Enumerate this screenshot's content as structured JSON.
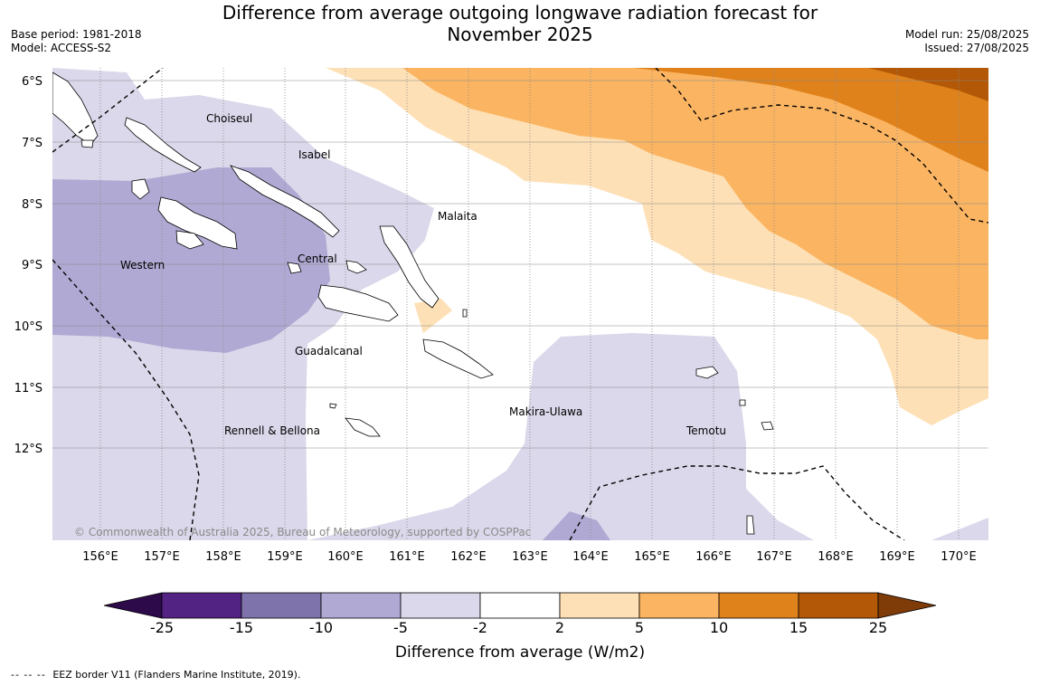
{
  "title": {
    "line1": "Difference from average outgoing longwave radiation forecast for",
    "line2": "November 2025"
  },
  "meta_left": {
    "base_period": "Base period: 1981-2018",
    "model": "Model: ACCESS-S2"
  },
  "meta_right": {
    "model_run": "Model run: 25/08/2025",
    "issued": "Issued: 27/08/2025"
  },
  "map": {
    "lon_ticks": [
      "156°E",
      "157°E",
      "158°E",
      "159°E",
      "160°E",
      "161°E",
      "162°E",
      "163°E",
      "164°E",
      "165°E",
      "166°E",
      "167°E",
      "168°E",
      "169°E",
      "170°E"
    ],
    "lat_ticks": [
      "6°S",
      "7°S",
      "8°S",
      "9°S",
      "10°S",
      "11°S",
      "12°S"
    ],
    "province_labels": [
      "Choiseul",
      "Isabel",
      "Malaita",
      "Western",
      "Central",
      "Guadalcanal",
      "Makira-Ulawa",
      "Rennell & Bellona",
      "Temotu"
    ],
    "copyright": "© Commonwealth of Australia 2025, Bureau of Meteorology, supported by COSPPac"
  },
  "colorbar": {
    "tick_labels": [
      "-25",
      "-15",
      "-10",
      "-5",
      "-2",
      "2",
      "5",
      "10",
      "15",
      "25"
    ],
    "colors": {
      "below_min": "#2d0a4a",
      "bins": [
        "#522383",
        "#7f73ab",
        "#b0a9d3",
        "#dad8ea",
        "#ffffff",
        "#fee0b6",
        "#fbb562",
        "#e0821c",
        "#b35806"
      ],
      "above_max": "#7f3b08"
    },
    "label": "Difference from average (W/m2)"
  },
  "colors": {
    "ocean_land_outline": "#000000",
    "gridline": "#888888",
    "eez_line": "#000000"
  },
  "footer": {
    "dash": "-- -- --",
    "text": "EEZ border V11 (Flanders Marine Institute, 2019)."
  }
}
